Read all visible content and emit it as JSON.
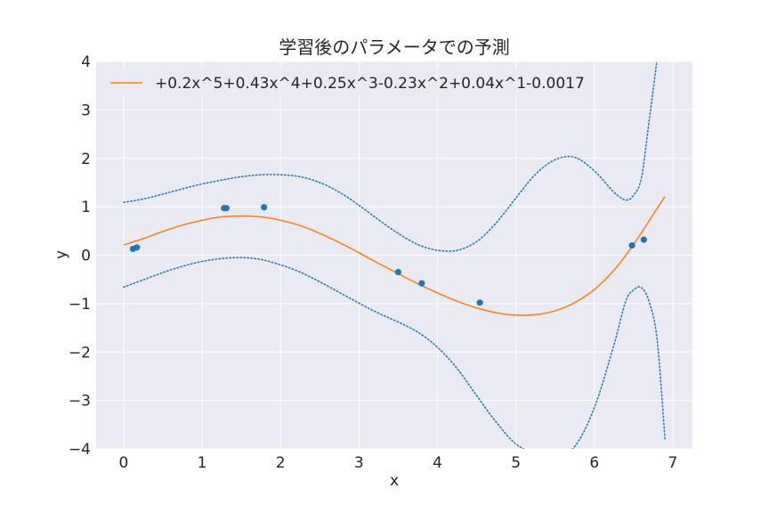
{
  "chart_data": {
    "type": "line",
    "title": "学習後のパラメータでの予測",
    "xlabel": "x",
    "ylabel": "y",
    "xlim": [
      -0.35,
      7.25
    ],
    "ylim": [
      -4,
      4
    ],
    "xticks": [
      0,
      1,
      2,
      3,
      4,
      5,
      6,
      7
    ],
    "xtick_labels": [
      "0",
      "1",
      "2",
      "3",
      "4",
      "5",
      "6",
      "7"
    ],
    "yticks": [
      -4,
      -3,
      -2,
      -1,
      0,
      1,
      2,
      3,
      4
    ],
    "ytick_labels": [
      "−4",
      "−3",
      "−2",
      "−1",
      "0",
      "1",
      "2",
      "3",
      "4"
    ],
    "grid": true,
    "legend_position": "top-left",
    "background": "#eaeaf2",
    "series": [
      {
        "name": "+0.2x^5+0.43x^4+0.25x^3-0.23x^2+0.04x^1-0.0017",
        "kind": "line",
        "color": "#ff7f0e",
        "x": [
          0,
          0.25,
          0.5,
          0.75,
          1.0,
          1.25,
          1.5,
          1.75,
          2.0,
          2.25,
          2.5,
          2.75,
          3.0,
          3.25,
          3.5,
          3.75,
          4.0,
          4.25,
          4.5,
          4.75,
          5.0,
          5.25,
          5.5,
          5.75,
          6.0,
          6.25,
          6.5,
          6.75,
          6.9
        ],
        "y": [
          0.21,
          0.34,
          0.49,
          0.62,
          0.72,
          0.79,
          0.81,
          0.79,
          0.72,
          0.61,
          0.45,
          0.26,
          0.05,
          -0.17,
          -0.38,
          -0.59,
          -0.78,
          -0.95,
          -1.09,
          -1.19,
          -1.24,
          -1.23,
          -1.15,
          -0.98,
          -0.71,
          -0.31,
          0.22,
          0.84,
          1.21
        ]
      },
      {
        "name": "",
        "kind": "dotted",
        "color": "#1f77b4",
        "x": [
          0,
          0.25,
          0.5,
          0.75,
          1.0,
          1.25,
          1.5,
          1.75,
          2.0,
          2.25,
          2.5,
          2.75,
          3.0,
          3.25,
          3.5,
          3.75,
          4.0,
          4.25,
          4.5,
          4.75,
          5.0,
          5.25,
          5.5,
          5.75,
          6.0,
          6.25,
          6.4,
          6.5,
          6.6,
          6.7,
          6.8
        ],
        "y": [
          1.09,
          1.16,
          1.26,
          1.37,
          1.47,
          1.55,
          1.62,
          1.66,
          1.66,
          1.62,
          1.5,
          1.3,
          1.03,
          0.73,
          0.45,
          0.22,
          0.1,
          0.1,
          0.28,
          0.67,
          1.18,
          1.67,
          1.97,
          2.02,
          1.74,
          1.3,
          1.14,
          1.24,
          1.6,
          2.8,
          4.05
        ]
      },
      {
        "name": "",
        "kind": "dotted",
        "color": "#1f77b4",
        "x": [
          0,
          0.25,
          0.5,
          0.75,
          1.0,
          1.25,
          1.5,
          1.75,
          2.0,
          2.25,
          2.5,
          2.75,
          3.0,
          3.25,
          3.5,
          3.75,
          4.0,
          4.25,
          4.5,
          4.75,
          5.0,
          5.25,
          5.5,
          5.75,
          6.0,
          6.25,
          6.4,
          6.5,
          6.6,
          6.7,
          6.8,
          6.9
        ],
        "y": [
          -0.66,
          -0.51,
          -0.36,
          -0.23,
          -0.13,
          -0.07,
          -0.05,
          -0.09,
          -0.2,
          -0.35,
          -0.55,
          -0.77,
          -0.99,
          -1.2,
          -1.38,
          -1.59,
          -1.9,
          -2.34,
          -2.9,
          -3.45,
          -3.9,
          -4.1,
          -4.2,
          -3.95,
          -3.15,
          -1.85,
          -0.95,
          -0.72,
          -0.67,
          -0.97,
          -1.75,
          -3.8
        ]
      },
      {
        "name": "",
        "kind": "scatter",
        "color": "#1f77b4",
        "x": [
          0.12,
          0.17,
          1.28,
          1.31,
          1.79,
          3.5,
          3.8,
          4.54,
          6.48,
          6.63
        ],
        "y": [
          0.13,
          0.16,
          0.97,
          0.97,
          0.99,
          -0.35,
          -0.58,
          -0.98,
          0.2,
          0.32
        ]
      }
    ]
  }
}
